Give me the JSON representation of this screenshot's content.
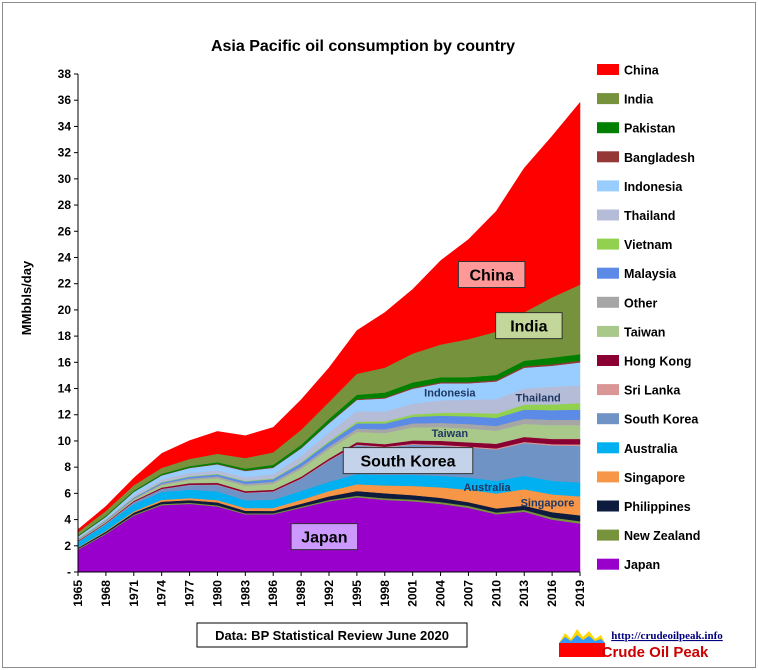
{
  "chart_data": {
    "type": "area",
    "stacked": true,
    "title": "Asia Pacific oil consumption  by country",
    "ylabel": "MMbbls/day",
    "xlabel": "",
    "ylim": [
      0,
      38
    ],
    "yticks": [
      "-",
      "2",
      "4",
      "6",
      "8",
      "10",
      "12",
      "14",
      "16",
      "18",
      "20",
      "22",
      "24",
      "26",
      "28",
      "30",
      "32",
      "34",
      "36",
      "38"
    ],
    "xticks": [
      "1965",
      "1968",
      "1971",
      "1974",
      "1977",
      "1980",
      "1983",
      "1986",
      "1989",
      "1992",
      "1995",
      "1998",
      "2001",
      "2004",
      "2007",
      "2010",
      "2013",
      "2016",
      "2019"
    ],
    "x": [
      1965,
      1968,
      1971,
      1974,
      1977,
      1980,
      1983,
      1986,
      1989,
      1992,
      1995,
      1998,
      2001,
      2004,
      2007,
      2010,
      2013,
      2016,
      2019
    ],
    "legend_position": "right",
    "series": [
      {
        "name": "Japan",
        "color": "#9900CC",
        "values": [
          1.7,
          2.9,
          4.3,
          5.1,
          5.2,
          5.0,
          4.4,
          4.4,
          4.9,
          5.4,
          5.7,
          5.5,
          5.4,
          5.2,
          4.9,
          4.4,
          4.6,
          4.0,
          3.7
        ]
      },
      {
        "name": "New Zealand",
        "color": "#77933C",
        "values": [
          0.07,
          0.07,
          0.08,
          0.09,
          0.09,
          0.09,
          0.08,
          0.08,
          0.09,
          0.1,
          0.12,
          0.13,
          0.13,
          0.14,
          0.15,
          0.15,
          0.15,
          0.17,
          0.18
        ]
      },
      {
        "name": "Philippines",
        "color": "#0D1B3E",
        "values": [
          0.08,
          0.11,
          0.15,
          0.18,
          0.2,
          0.23,
          0.2,
          0.18,
          0.22,
          0.28,
          0.36,
          0.38,
          0.34,
          0.32,
          0.28,
          0.3,
          0.32,
          0.4,
          0.45
        ]
      },
      {
        "name": "Singapore",
        "color": "#F79646",
        "values": [
          0.04,
          0.06,
          0.1,
          0.14,
          0.15,
          0.17,
          0.2,
          0.22,
          0.3,
          0.4,
          0.52,
          0.6,
          0.7,
          0.8,
          0.95,
          1.15,
          1.25,
          1.35,
          1.45
        ]
      },
      {
        "name": "Australia",
        "color": "#00B0F0",
        "values": [
          0.4,
          0.5,
          0.55,
          0.6,
          0.65,
          0.66,
          0.6,
          0.63,
          0.68,
          0.7,
          0.78,
          0.8,
          0.85,
          0.88,
          0.93,
          0.95,
          1.02,
          1.04,
          1.05
        ]
      },
      {
        "name": "South Korea",
        "color": "#7093C5",
        "values": [
          0.02,
          0.06,
          0.15,
          0.22,
          0.35,
          0.5,
          0.55,
          0.62,
          0.92,
          1.6,
          2.2,
          2.1,
          2.3,
          2.3,
          2.3,
          2.4,
          2.5,
          2.7,
          2.8
        ]
      },
      {
        "name": "Sri Lanka",
        "color": "#D99694",
        "values": [
          0.02,
          0.02,
          0.02,
          0.02,
          0.02,
          0.03,
          0.03,
          0.03,
          0.03,
          0.04,
          0.05,
          0.05,
          0.06,
          0.07,
          0.07,
          0.08,
          0.09,
          0.1,
          0.11
        ]
      },
      {
        "name": "Hong Kong",
        "color": "#8B0032",
        "values": [
          0.05,
          0.06,
          0.08,
          0.1,
          0.12,
          0.13,
          0.12,
          0.12,
          0.13,
          0.14,
          0.18,
          0.2,
          0.26,
          0.3,
          0.32,
          0.36,
          0.38,
          0.4,
          0.42
        ]
      },
      {
        "name": "Taiwan",
        "color": "#A9C98A",
        "values": [
          0.04,
          0.06,
          0.1,
          0.18,
          0.25,
          0.35,
          0.4,
          0.45,
          0.6,
          0.7,
          0.78,
          0.85,
          1.0,
          1.05,
          1.05,
          1.0,
          1.0,
          1.05,
          1.05
        ]
      },
      {
        "name": "Other",
        "color": "#A6A6A6",
        "values": [
          0.06,
          0.07,
          0.08,
          0.1,
          0.12,
          0.14,
          0.15,
          0.16,
          0.18,
          0.22,
          0.25,
          0.28,
          0.3,
          0.32,
          0.34,
          0.36,
          0.38,
          0.4,
          0.42
        ]
      },
      {
        "name": "Malaysia",
        "color": "#5B8BE6",
        "values": [
          0.04,
          0.05,
          0.07,
          0.1,
          0.12,
          0.15,
          0.18,
          0.2,
          0.26,
          0.32,
          0.4,
          0.45,
          0.5,
          0.55,
          0.6,
          0.62,
          0.7,
          0.74,
          0.76
        ]
      },
      {
        "name": "Vietnam",
        "color": "#92D050",
        "values": [
          0.02,
          0.02,
          0.03,
          0.04,
          0.04,
          0.04,
          0.04,
          0.05,
          0.06,
          0.1,
          0.14,
          0.16,
          0.18,
          0.22,
          0.26,
          0.32,
          0.38,
          0.44,
          0.5
        ]
      },
      {
        "name": "Thailand",
        "color": "#B4BCD8",
        "values": [
          0.05,
          0.08,
          0.15,
          0.2,
          0.25,
          0.28,
          0.28,
          0.32,
          0.5,
          0.65,
          0.8,
          0.75,
          0.82,
          0.95,
          1.0,
          1.1,
          1.22,
          1.35,
          1.35
        ]
      },
      {
        "name": "Indonesia",
        "color": "#99CCFF",
        "values": [
          0.12,
          0.15,
          0.25,
          0.3,
          0.38,
          0.45,
          0.48,
          0.5,
          0.56,
          0.7,
          0.85,
          1.0,
          1.15,
          1.3,
          1.25,
          1.35,
          1.6,
          1.6,
          1.75
        ]
      },
      {
        "name": "Bangladesh",
        "color": "#953735",
        "values": [
          0.02,
          0.02,
          0.02,
          0.03,
          0.03,
          0.04,
          0.04,
          0.04,
          0.05,
          0.05,
          0.06,
          0.07,
          0.08,
          0.08,
          0.09,
          0.1,
          0.11,
          0.12,
          0.14
        ]
      },
      {
        "name": "Pakistan",
        "color": "#008000",
        "values": [
          0.06,
          0.08,
          0.09,
          0.1,
          0.11,
          0.12,
          0.15,
          0.18,
          0.22,
          0.28,
          0.34,
          0.38,
          0.4,
          0.38,
          0.38,
          0.4,
          0.42,
          0.5,
          0.5
        ]
      },
      {
        "name": "India",
        "color": "#76923C",
        "values": [
          0.25,
          0.35,
          0.4,
          0.45,
          0.55,
          0.65,
          0.8,
          0.95,
          1.15,
          1.3,
          1.6,
          1.9,
          2.2,
          2.5,
          2.9,
          3.3,
          3.7,
          4.6,
          5.3
        ]
      },
      {
        "name": "China",
        "color": "#FF0000",
        "values": [
          0.2,
          0.35,
          0.55,
          1.1,
          1.4,
          1.7,
          1.7,
          1.9,
          2.3,
          2.6,
          3.3,
          4.2,
          4.9,
          6.4,
          7.6,
          9.2,
          11.0,
          12.3,
          13.9
        ]
      }
    ],
    "legend_order": [
      "China",
      "India",
      "Pakistan",
      "Bangladesh",
      "Indonesia",
      "Thailand",
      "Vietnam",
      "Malaysia",
      "Other",
      "Taiwan",
      "Hong Kong",
      "Sri Lanka",
      "South Korea",
      "Australia",
      "Singapore",
      "Philippines",
      "New Zealand",
      "Japan"
    ],
    "annotations": [
      {
        "text": "China",
        "style": "boxed",
        "box_color": "#FF9999",
        "x": 2009.5,
        "y": 22.7
      },
      {
        "text": "India",
        "style": "boxed",
        "box_color": "#C4D79B",
        "x": 2013.5,
        "y": 18.8
      },
      {
        "text": "Indonesia",
        "style": "plain",
        "text_color": "#1F3864",
        "x": 2005.0,
        "y": 13.7
      },
      {
        "text": "Thailand",
        "style": "plain",
        "text_color": "#1F3864",
        "x": 2014.5,
        "y": 13.3
      },
      {
        "text": "Taiwan",
        "style": "plain",
        "text_color": "#1F3864",
        "x": 2005.0,
        "y": 10.6
      },
      {
        "text": "South Korea",
        "style": "boxed",
        "box_color": "#C5D3EA",
        "x": 2000.5,
        "y": 8.5
      },
      {
        "text": "Australia",
        "style": "plain",
        "text_color": "#1F3864",
        "x": 2009.0,
        "y": 6.5
      },
      {
        "text": "Singapore",
        "style": "plain",
        "text_color": "#1F3864",
        "x": 2015.5,
        "y": 5.3
      },
      {
        "text": "Japan",
        "style": "boxed",
        "box_color": "#CC99FF",
        "x": 1991.5,
        "y": 2.7
      }
    ]
  },
  "source_label": "Data: BP Statistical Review June 2020",
  "logo": {
    "url": "http://crudeoilpeak.info",
    "name": "Crude Oil Peak"
  }
}
